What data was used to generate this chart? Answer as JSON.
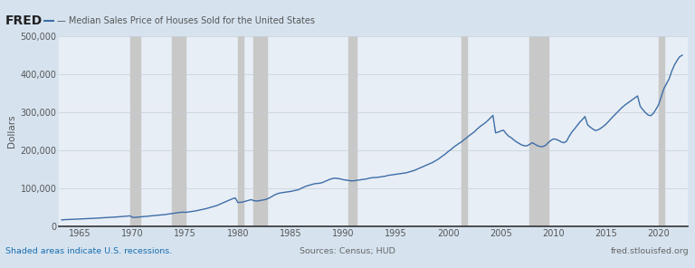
{
  "title": "Median Sales Price of Houses Sold for the United States",
  "ylabel": "Dollars",
  "background_color": "#d6e3ef",
  "plot_background": "#e8eef5",
  "line_color": "#3d6da8",
  "line_width": 1.0,
  "ylim": [
    0,
    500000
  ],
  "yticks": [
    0,
    100000,
    200000,
    300000,
    400000,
    500000
  ],
  "ytick_labels": [
    "0",
    "100,000",
    "200,000",
    "300,000",
    "400,000",
    "500,000"
  ],
  "xlim": [
    1963.0,
    2022.8
  ],
  "xticks": [
    1965,
    1970,
    1975,
    1980,
    1985,
    1990,
    1995,
    2000,
    2005,
    2010,
    2015,
    2020
  ],
  "recession_bands": [
    [
      1969.75,
      1970.75
    ],
    [
      1973.75,
      1975.0
    ],
    [
      1980.0,
      1980.5
    ],
    [
      1981.5,
      1982.75
    ],
    [
      1990.5,
      1991.25
    ],
    [
      2001.25,
      2001.75
    ],
    [
      2007.75,
      2009.5
    ],
    [
      2020.0,
      2020.5
    ]
  ],
  "recession_color": "#c8c8c8",
  "footer_left": "Shaded areas indicate U.S. recessions.",
  "footer_center": "Sources: Census; HUD",
  "footer_right": "fred.stlouisfed.org",
  "footer_color_left": "#1a6faf",
  "footer_color_center": "#666666",
  "footer_color_right": "#666666",
  "data_years": [
    1963.25,
    1963.5,
    1963.75,
    1964.0,
    1964.25,
    1964.5,
    1964.75,
    1965.0,
    1965.25,
    1965.5,
    1965.75,
    1966.0,
    1966.25,
    1966.5,
    1966.75,
    1967.0,
    1967.25,
    1967.5,
    1967.75,
    1968.0,
    1968.25,
    1968.5,
    1968.75,
    1969.0,
    1969.25,
    1969.5,
    1969.75,
    1970.0,
    1970.25,
    1970.5,
    1970.75,
    1971.0,
    1971.25,
    1971.5,
    1971.75,
    1972.0,
    1972.25,
    1972.5,
    1972.75,
    1973.0,
    1973.25,
    1973.5,
    1973.75,
    1974.0,
    1974.25,
    1974.5,
    1974.75,
    1975.0,
    1975.25,
    1975.5,
    1975.75,
    1976.0,
    1976.25,
    1976.5,
    1976.75,
    1977.0,
    1977.25,
    1977.5,
    1977.75,
    1978.0,
    1978.25,
    1978.5,
    1978.75,
    1979.0,
    1979.25,
    1979.5,
    1979.75,
    1980.0,
    1980.25,
    1980.5,
    1980.75,
    1981.0,
    1981.25,
    1981.5,
    1981.75,
    1982.0,
    1982.25,
    1982.5,
    1982.75,
    1983.0,
    1983.25,
    1983.5,
    1983.75,
    1984.0,
    1984.25,
    1984.5,
    1984.75,
    1985.0,
    1985.25,
    1985.5,
    1985.75,
    1986.0,
    1986.25,
    1986.5,
    1986.75,
    1987.0,
    1987.25,
    1987.5,
    1987.75,
    1988.0,
    1988.25,
    1988.5,
    1988.75,
    1989.0,
    1989.25,
    1989.5,
    1989.75,
    1990.0,
    1990.25,
    1990.5,
    1990.75,
    1991.0,
    1991.25,
    1991.5,
    1991.75,
    1992.0,
    1992.25,
    1992.5,
    1992.75,
    1993.0,
    1993.25,
    1993.5,
    1993.75,
    1994.0,
    1994.25,
    1994.5,
    1994.75,
    1995.0,
    1995.25,
    1995.5,
    1995.75,
    1996.0,
    1996.25,
    1996.5,
    1996.75,
    1997.0,
    1997.25,
    1997.5,
    1997.75,
    1998.0,
    1998.25,
    1998.5,
    1998.75,
    1999.0,
    1999.25,
    1999.5,
    1999.75,
    2000.0,
    2000.25,
    2000.5,
    2000.75,
    2001.0,
    2001.25,
    2001.5,
    2001.75,
    2002.0,
    2002.25,
    2002.5,
    2002.75,
    2003.0,
    2003.25,
    2003.5,
    2003.75,
    2004.0,
    2004.25,
    2004.5,
    2004.75,
    2005.0,
    2005.25,
    2005.5,
    2005.75,
    2006.0,
    2006.25,
    2006.5,
    2006.75,
    2007.0,
    2007.25,
    2007.5,
    2007.75,
    2008.0,
    2008.25,
    2008.5,
    2008.75,
    2009.0,
    2009.25,
    2009.5,
    2009.75,
    2010.0,
    2010.25,
    2010.5,
    2010.75,
    2011.0,
    2011.25,
    2011.5,
    2011.75,
    2012.0,
    2012.25,
    2012.5,
    2012.75,
    2013.0,
    2013.25,
    2013.5,
    2013.75,
    2014.0,
    2014.25,
    2014.5,
    2014.75,
    2015.0,
    2015.25,
    2015.5,
    2015.75,
    2016.0,
    2016.25,
    2016.5,
    2016.75,
    2017.0,
    2017.25,
    2017.5,
    2017.75,
    2018.0,
    2018.25,
    2018.5,
    2018.75,
    2019.0,
    2019.25,
    2019.5,
    2019.75,
    2020.0,
    2020.25,
    2020.5,
    2020.75,
    2021.0,
    2021.25,
    2021.5,
    2021.75,
    2022.0,
    2022.25
  ],
  "data_values": [
    17200,
    17800,
    18100,
    18200,
    18700,
    19100,
    19400,
    19700,
    20000,
    20300,
    20600,
    21000,
    21300,
    21700,
    22100,
    22500,
    22800,
    23100,
    23500,
    24000,
    24500,
    25000,
    25600,
    26000,
    26700,
    27300,
    27800,
    23700,
    23900,
    24500,
    25100,
    25700,
    26500,
    27200,
    28000,
    28500,
    29100,
    29800,
    30500,
    31000,
    32000,
    33000,
    34000,
    35000,
    36000,
    37000,
    37500,
    37100,
    37800,
    38900,
    40000,
    41000,
    42500,
    44000,
    45500,
    47000,
    49000,
    51000,
    53000,
    55000,
    58000,
    61000,
    64000,
    67000,
    70000,
    73000,
    75000,
    63000,
    63500,
    64500,
    66500,
    68700,
    70500,
    68000,
    67000,
    67500,
    69000,
    70000,
    72000,
    75000,
    79000,
    83000,
    86000,
    88000,
    89000,
    90000,
    91000,
    92000,
    93500,
    95000,
    96500,
    100000,
    103000,
    106000,
    108000,
    110000,
    112000,
    113000,
    113500,
    115000,
    118000,
    121000,
    124000,
    126000,
    127000,
    126000,
    125000,
    123000,
    122000,
    121000,
    120000,
    120000,
    121000,
    122000,
    123000,
    124000,
    125000,
    127000,
    128000,
    128500,
    129000,
    130000,
    131000,
    132000,
    134000,
    135000,
    136000,
    137000,
    138000,
    139000,
    140000,
    141000,
    143000,
    145000,
    147000,
    150000,
    153000,
    156000,
    159000,
    162000,
    165000,
    168000,
    172000,
    176000,
    181000,
    186000,
    191000,
    197000,
    202000,
    208000,
    213000,
    218000,
    222000,
    228000,
    233000,
    239000,
    244000,
    249000,
    256000,
    262000,
    267000,
    272000,
    278000,
    285000,
    292000,
    246000,
    248000,
    251000,
    253000,
    244000,
    237000,
    233000,
    227000,
    222000,
    218000,
    214000,
    212000,
    212000,
    216000,
    220000,
    216000,
    212000,
    210000,
    210000,
    213000,
    220000,
    226000,
    230000,
    229000,
    226000,
    222000,
    220000,
    224000,
    237000,
    248000,
    256000,
    265000,
    274000,
    281000,
    289000,
    267000,
    261000,
    256000,
    252000,
    254000,
    258000,
    263000,
    269000,
    276000,
    284000,
    291000,
    298000,
    305000,
    312000,
    318000,
    323000,
    328000,
    333000,
    338000,
    343000,
    316000,
    307000,
    299000,
    293000,
    291000,
    297000,
    308000,
    320000,
    341000,
    362000,
    375000,
    388000,
    408000,
    424000,
    436000,
    446000,
    450000
  ]
}
